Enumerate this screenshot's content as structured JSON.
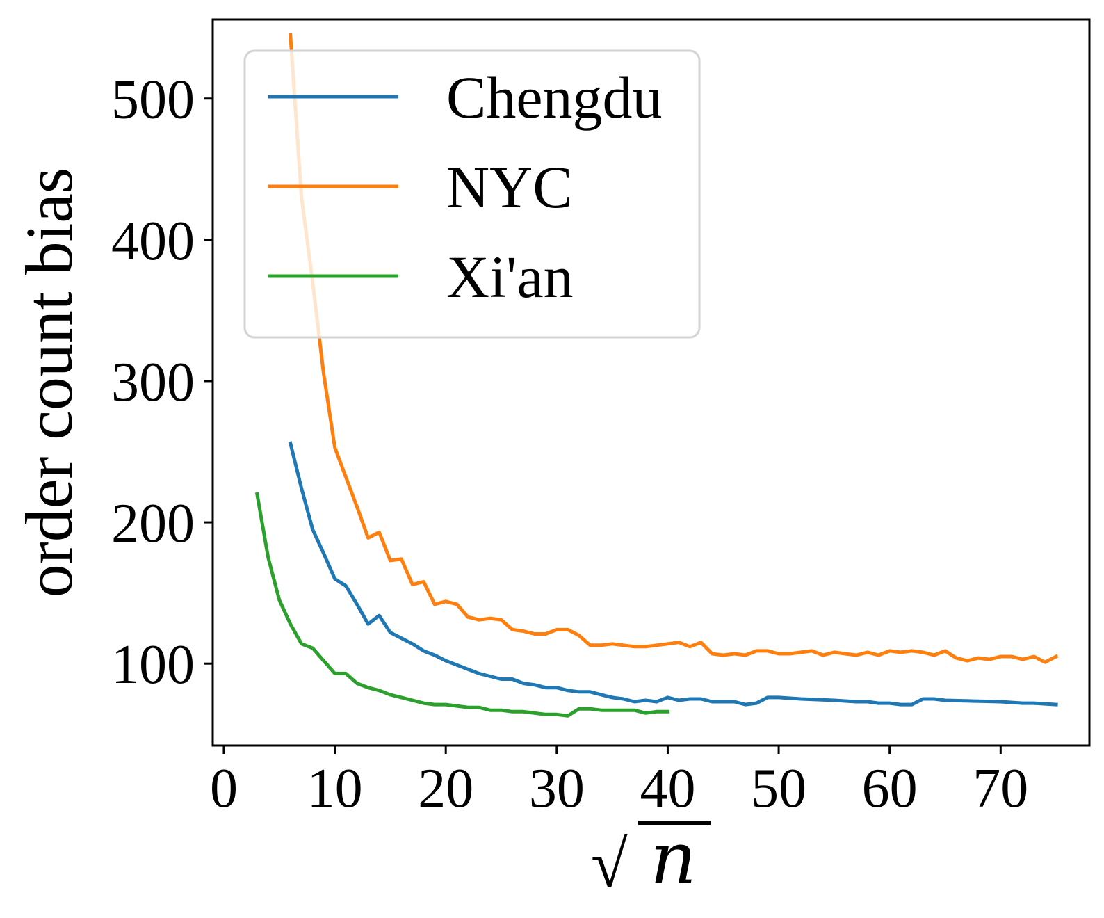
{
  "chart_data": {
    "type": "line",
    "xlabel": "n",
    "xlabel_prefix": "√",
    "ylabel": "order count bias",
    "xlim": [
      -1,
      78
    ],
    "ylim": [
      42,
      556
    ],
    "xticks": [
      0,
      10,
      20,
      30,
      40,
      50,
      60,
      70
    ],
    "yticks": [
      100,
      200,
      300,
      400,
      500
    ],
    "grid": false,
    "legend_position": "upper-left",
    "series": [
      {
        "name": "Chengdu",
        "color": "#1f77b4",
        "x": [
          6,
          7,
          8,
          9,
          10,
          11,
          12,
          13,
          14,
          15,
          16,
          17,
          18,
          19,
          20,
          21,
          22,
          23,
          24,
          25,
          26,
          27,
          28,
          29,
          30,
          31,
          32,
          33,
          34,
          35,
          36,
          37,
          38,
          39,
          40,
          41,
          42,
          43,
          44,
          45,
          46,
          47,
          48,
          49,
          50,
          52,
          55,
          57,
          58,
          59,
          60,
          61,
          62,
          63,
          64,
          65,
          70,
          72,
          73,
          75
        ],
        "y": [
          256,
          224,
          195,
          178,
          160,
          155,
          142,
          128,
          134,
          122,
          118,
          114,
          109,
          106,
          102,
          99,
          96,
          93,
          91,
          89,
          89,
          86,
          85,
          83,
          83,
          81,
          80,
          80,
          78,
          76,
          75,
          73,
          74,
          73,
          76,
          74,
          75,
          75,
          73,
          73,
          73,
          71,
          72,
          76,
          76,
          75,
          74,
          73,
          73,
          72,
          72,
          71,
          71,
          75,
          75,
          74,
          73,
          72,
          72,
          71
        ]
      },
      {
        "name": "NYC",
        "color": "#ff7f0e",
        "x": [
          6,
          7,
          8,
          9,
          10,
          11,
          12,
          13,
          14,
          15,
          16,
          17,
          18,
          19,
          20,
          21,
          22,
          23,
          24,
          25,
          26,
          27,
          28,
          29,
          30,
          31,
          32,
          33,
          34,
          35,
          36,
          37,
          38,
          39,
          40,
          41,
          42,
          43,
          44,
          45,
          46,
          47,
          48,
          49,
          50,
          51,
          52,
          53,
          54,
          55,
          56,
          57,
          58,
          59,
          60,
          61,
          62,
          63,
          64,
          65,
          66,
          67,
          68,
          69,
          70,
          71,
          72,
          73,
          74,
          75
        ],
        "y": [
          545,
          430,
          370,
          305,
          253,
          232,
          211,
          189,
          193,
          173,
          174,
          156,
          158,
          142,
          144,
          142,
          133,
          131,
          132,
          131,
          124,
          123,
          121,
          121,
          124,
          124,
          120,
          113,
          113,
          114,
          113,
          112,
          112,
          113,
          114,
          115,
          112,
          115,
          107,
          106,
          107,
          106,
          109,
          109,
          107,
          107,
          108,
          109,
          106,
          108,
          107,
          106,
          108,
          106,
          109,
          108,
          109,
          108,
          106,
          109,
          104,
          102,
          104,
          103,
          105,
          105,
          103,
          105,
          101,
          105
        ]
      },
      {
        "name": "Xi'an",
        "color": "#2ca02c",
        "x": [
          3,
          4,
          5,
          6,
          7,
          8,
          9,
          10,
          11,
          12,
          13,
          14,
          15,
          16,
          17,
          18,
          19,
          20,
          21,
          22,
          23,
          24,
          25,
          26,
          27,
          28,
          29,
          30,
          31,
          32,
          33,
          34,
          35,
          36,
          37,
          38,
          39,
          40
        ],
        "y": [
          220,
          175,
          145,
          128,
          114,
          111,
          102,
          93,
          93,
          86,
          83,
          81,
          78,
          76,
          74,
          72,
          71,
          71,
          70,
          69,
          69,
          67,
          67,
          66,
          66,
          65,
          64,
          64,
          63,
          68,
          68,
          67,
          67,
          67,
          67,
          65,
          66,
          66
        ]
      }
    ]
  }
}
